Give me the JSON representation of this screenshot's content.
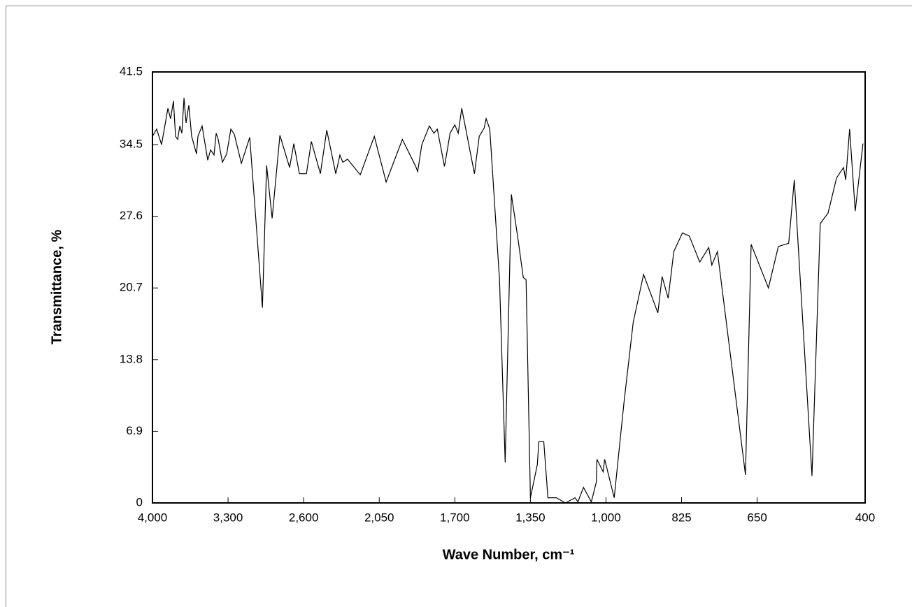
{
  "chart_data": {
    "type": "line",
    "x_label": "Wave Number, cm⁻¹",
    "y_label": "Transmittance, %",
    "xlim": [
      4000,
      400
    ],
    "xticks": [
      {
        "value": 4000,
        "label": "4,000"
      },
      {
        "value": 3300,
        "label": "3,300"
      },
      {
        "value": 2600,
        "label": "2,600"
      },
      {
        "value": 2050,
        "label": "2,050"
      },
      {
        "value": 1700,
        "label": "1,700"
      },
      {
        "value": 1350,
        "label": "1,350"
      },
      {
        "value": 1000,
        "label": "1,000"
      },
      825,
      650,
      400
    ],
    "ylim": [
      0,
      41.5
    ],
    "yticks": [
      0,
      6.9,
      13.8,
      20.7,
      27.6,
      34.5,
      41.5
    ],
    "color": "#000000",
    "x": [
      4000,
      3961,
      3916,
      3857,
      3832,
      3806,
      3786,
      3767,
      3747,
      3728,
      3708,
      3689,
      3663,
      3637,
      3592,
      3579,
      3540,
      3488,
      3462,
      3430,
      3410,
      3391,
      3352,
      3313,
      3274,
      3242,
      3177,
      3099,
      2982,
      2943,
      2892,
      2820,
      2730,
      2691,
      2639,
      2580,
      2544,
      2478,
      2432,
      2366,
      2336,
      2315,
      2280,
      2188,
      2086,
      2018,
      1943,
      1881,
      1872,
      1853,
      1818,
      1797,
      1781,
      1748,
      1732,
      1722,
      1700,
      1684,
      1668,
      1609,
      1587,
      1564,
      1555,
      1538,
      1493,
      1467,
      1438,
      1406,
      1383,
      1370,
      1350,
      1318,
      1311,
      1288,
      1269,
      1230,
      1188,
      1143,
      1130,
      1104,
      1068,
      1045,
      1042,
      1013,
      1006,
      981,
      958,
      937,
      913,
      880,
      870,
      856,
      843,
      823,
      807,
      783,
      762,
      755,
      742,
      677,
      664,
      624,
      601,
      577,
      564,
      523,
      504,
      486,
      466,
      450,
      445,
      436,
      423,
      405
    ],
    "values": [
      35.3,
      36.0,
      34.5,
      38.0,
      37.0,
      38.7,
      35.3,
      35.0,
      36.3,
      35.6,
      39.0,
      36.6,
      38.3,
      35.3,
      33.6,
      35.3,
      36.3,
      33.0,
      34.0,
      33.5,
      35.6,
      35.0,
      32.8,
      33.6,
      36.0,
      35.5,
      32.7,
      35.2,
      18.8,
      32.5,
      27.4,
      35.4,
      32.3,
      34.6,
      31.7,
      31.7,
      34.8,
      31.7,
      35.9,
      31.7,
      33.5,
      32.8,
      33.1,
      31.6,
      35.3,
      30.9,
      35.0,
      32.4,
      31.9,
      34.5,
      36.3,
      35.6,
      36.0,
      32.4,
      34.3,
      35.6,
      36.4,
      35.6,
      38.0,
      31.7,
      35.3,
      36.1,
      37.0,
      36.0,
      21.5,
      3.9,
      29.7,
      25.2,
      21.7,
      21.5,
      0.5,
      3.7,
      5.9,
      5.9,
      0.5,
      0.5,
      0,
      0.5,
      0.1,
      1.5,
      0.1,
      2.0,
      4.2,
      3.0,
      4.2,
      0.5,
      9.8,
      17.4,
      22.0,
      18.3,
      21.8,
      19.7,
      24.2,
      26.0,
      25.7,
      23.2,
      24.6,
      22.9,
      24.2,
      2.7,
      24.9,
      20.7,
      24.7,
      25.0,
      31.1,
      2.6,
      26.9,
      27.9,
      31.3,
      32.3,
      31.1,
      36.0,
      28.1,
      34.6
    ]
  }
}
